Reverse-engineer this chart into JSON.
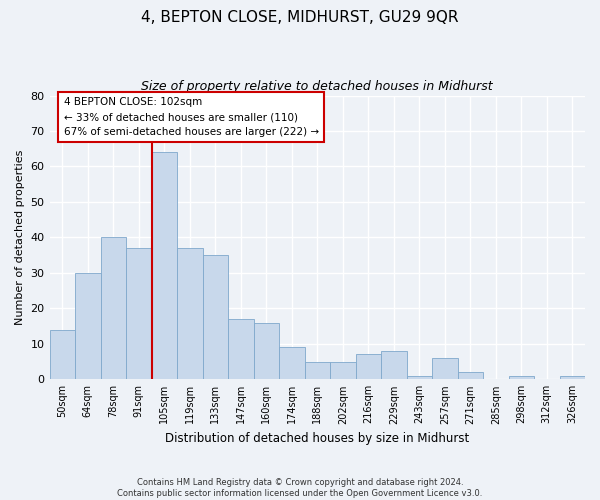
{
  "title": "4, BEPTON CLOSE, MIDHURST, GU29 9QR",
  "subtitle": "Size of property relative to detached houses in Midhurst",
  "xlabel": "Distribution of detached houses by size in Midhurst",
  "ylabel": "Number of detached properties",
  "bar_labels": [
    "50sqm",
    "64sqm",
    "78sqm",
    "91sqm",
    "105sqm",
    "119sqm",
    "133sqm",
    "147sqm",
    "160sqm",
    "174sqm",
    "188sqm",
    "202sqm",
    "216sqm",
    "229sqm",
    "243sqm",
    "257sqm",
    "271sqm",
    "285sqm",
    "298sqm",
    "312sqm",
    "326sqm"
  ],
  "bar_values": [
    14,
    30,
    40,
    37,
    64,
    37,
    35,
    17,
    16,
    9,
    5,
    5,
    7,
    8,
    1,
    6,
    2,
    0,
    1,
    0,
    1
  ],
  "bar_color": "#c8d8eb",
  "bar_edge_color": "#7fa8cc",
  "vline_x_index": 4,
  "vline_color": "#cc0000",
  "annotation_title": "4 BEPTON CLOSE: 102sqm",
  "annotation_line1": "← 33% of detached houses are smaller (110)",
  "annotation_line2": "67% of semi-detached houses are larger (222) →",
  "annotation_box_color": "#ffffff",
  "annotation_box_edge": "#cc0000",
  "ylim": [
    0,
    80
  ],
  "yticks": [
    0,
    10,
    20,
    30,
    40,
    50,
    60,
    70,
    80
  ],
  "footer_line1": "Contains HM Land Registry data © Crown copyright and database right 2024.",
  "footer_line2": "Contains public sector information licensed under the Open Government Licence v3.0.",
  "background_color": "#eef2f7",
  "grid_color": "#ffffff",
  "title_fontsize": 11,
  "subtitle_fontsize": 9
}
